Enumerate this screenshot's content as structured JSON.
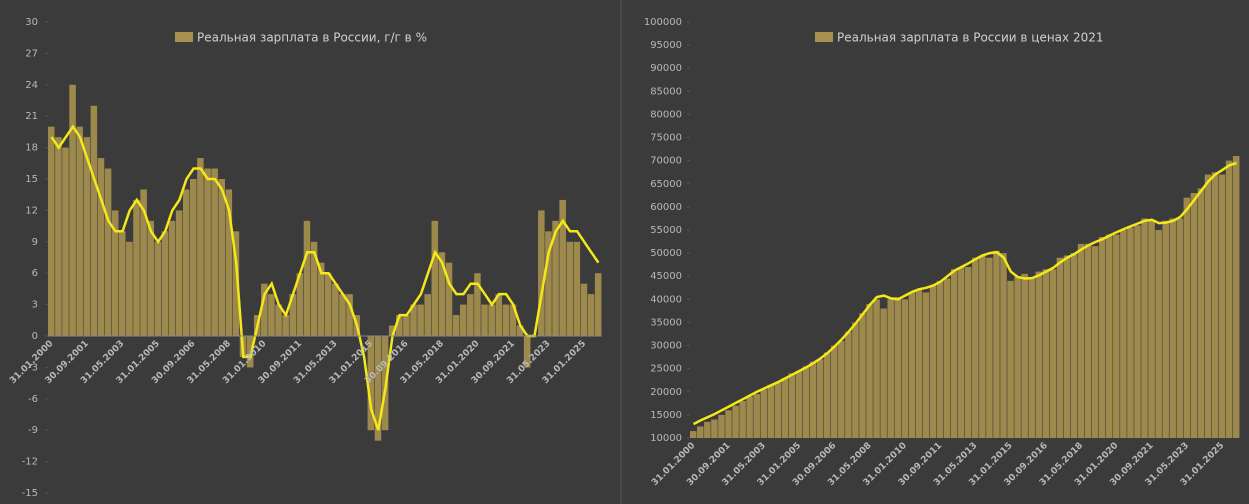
{
  "chart_data": [
    {
      "type": "bar",
      "title": null,
      "categories": [
        "31.01.2000",
        null,
        null,
        null,
        null,
        "30.09.2001",
        null,
        null,
        null,
        null,
        "31.05.2003",
        null,
        null,
        null,
        null,
        "31.01.2005",
        null,
        null,
        null,
        null,
        "30.09.2006",
        null,
        null,
        null,
        null,
        "31.05.2008",
        null,
        null,
        null,
        null,
        "31.01.2010",
        null,
        null,
        null,
        null,
        "30.09.2011",
        null,
        null,
        null,
        null,
        "31.05.2013",
        null,
        null,
        null,
        null,
        "31.01.2015",
        null,
        null,
        null,
        null,
        "30.09.2016",
        null,
        null,
        null,
        null,
        "31.05.2018",
        null,
        null,
        null,
        null,
        "31.01.2020",
        null,
        null,
        null,
        null,
        "30.09.2021",
        null,
        null,
        null,
        null,
        "31.05.2023",
        null,
        null,
        null,
        null,
        "31.01.2025",
        null,
        null
      ],
      "series": [
        {
          "name": "Реальная зарплата в России, г/г в %",
          "type": "bar",
          "color": "#a8924f",
          "values": [
            20,
            19,
            18,
            24,
            20,
            19,
            22,
            17,
            16,
            12,
            10,
            9,
            13,
            14,
            11,
            9,
            10,
            11,
            12,
            14,
            15,
            17,
            16,
            16,
            15,
            14,
            10,
            -2,
            -3,
            2,
            5,
            4,
            3,
            2,
            4,
            6,
            11,
            9,
            7,
            6,
            5,
            4,
            4,
            2,
            0,
            -9,
            -10,
            -9,
            1,
            2,
            2,
            3,
            3,
            4,
            11,
            8,
            7,
            2,
            3,
            4,
            6,
            3,
            3,
            4,
            3,
            3,
            1,
            -3,
            0,
            12,
            10,
            11,
            13,
            9,
            9,
            5,
            4,
            6
          ]
        },
        {
          "type": "line",
          "color": "#f4e81a",
          "values": [
            19,
            18,
            19,
            20,
            19,
            17,
            15,
            13,
            11,
            10,
            10,
            12,
            13,
            12,
            10,
            9,
            10,
            12,
            13,
            15,
            16,
            16,
            15,
            15,
            14,
            12,
            7,
            -2,
            -2,
            1,
            4,
            5,
            3,
            2,
            4,
            6,
            8,
            8,
            6,
            6,
            5,
            4,
            3,
            1,
            -2,
            -7,
            -9,
            -5,
            0,
            2,
            2,
            3,
            4,
            6,
            8,
            7,
            5,
            4,
            4,
            5,
            5,
            4,
            3,
            4,
            4,
            3,
            1,
            0,
            0,
            4,
            8,
            10,
            11,
            10,
            10,
            9,
            8,
            7
          ]
        }
      ],
      "ylim": [
        -15,
        30
      ],
      "yticks": [
        -15,
        -12,
        -9,
        -6,
        -3,
        0,
        3,
        6,
        9,
        12,
        15,
        18,
        21,
        24,
        27,
        30
      ]
    },
    {
      "type": "bar",
      "title": null,
      "categories": [
        "31.01.2000",
        null,
        null,
        null,
        null,
        "30.09.2001",
        null,
        null,
        null,
        null,
        "31.05.2003",
        null,
        null,
        null,
        null,
        "31.01.2005",
        null,
        null,
        null,
        null,
        "30.09.2006",
        null,
        null,
        null,
        null,
        "31.05.2008",
        null,
        null,
        null,
        null,
        "31.01.2010",
        null,
        null,
        null,
        null,
        "30.09.2011",
        null,
        null,
        null,
        null,
        "31.05.2013",
        null,
        null,
        null,
        null,
        "31.01.2015",
        null,
        null,
        null,
        null,
        "30.09.2016",
        null,
        null,
        null,
        null,
        "31.05.2018",
        null,
        null,
        null,
        null,
        "31.01.2020",
        null,
        null,
        null,
        null,
        "30.09.2021",
        null,
        null,
        null,
        null,
        "31.05.2023",
        null,
        null,
        null,
        null,
        "31.01.2025",
        null,
        null
      ],
      "series": [
        {
          "name": "Реальная зарплата в России в ценах 2021",
          "type": "bar",
          "color": "#a8924f",
          "values": [
            11500,
            12500,
            13500,
            14000,
            15000,
            16000,
            17000,
            18000,
            19000,
            19500,
            20500,
            21500,
            22000,
            23000,
            24000,
            24500,
            25500,
            26500,
            27000,
            28500,
            30000,
            31000,
            33000,
            35000,
            37000,
            39000,
            40000,
            38000,
            40000,
            40500,
            40000,
            41500,
            42000,
            41500,
            43000,
            44000,
            44500,
            46500,
            47000,
            47000,
            49000,
            49500,
            49000,
            50500,
            50000,
            44000,
            45000,
            45500,
            44500,
            46000,
            46500,
            46500,
            49000,
            49500,
            50000,
            52000,
            52000,
            51500,
            53500,
            54000,
            54000,
            55000,
            55500,
            56000,
            57500,
            57000,
            55000,
            57000,
            57500,
            57500,
            62000,
            63000,
            64000,
            67000,
            67500,
            67000,
            70000,
            71000
          ]
        },
        {
          "type": "line",
          "color": "#f4e81a",
          "values": [
            13000,
            13800,
            14500,
            15200,
            16000,
            16800,
            17600,
            18400,
            19200,
            20000,
            20700,
            21400,
            22100,
            22900,
            23700,
            24500,
            25300,
            26200,
            27200,
            28400,
            29800,
            31300,
            33000,
            34800,
            36800,
            38800,
            40500,
            40800,
            40200,
            40000,
            40800,
            41600,
            42200,
            42500,
            43000,
            43800,
            45000,
            46200,
            47000,
            47800,
            48700,
            49500,
            50000,
            50200,
            49000,
            46000,
            44800,
            44500,
            44600,
            45200,
            46000,
            46800,
            48000,
            49000,
            49800,
            50800,
            51700,
            52400,
            53000,
            53800,
            54500,
            55200,
            55800,
            56400,
            57000,
            57200,
            56500,
            56600,
            57000,
            57800,
            59500,
            61500,
            63500,
            65500,
            67000,
            68000,
            69000,
            69500
          ]
        }
      ],
      "ylim": [
        10000,
        100000
      ],
      "yticks": [
        10000,
        15000,
        20000,
        25000,
        30000,
        35000,
        40000,
        45000,
        50000,
        55000,
        60000,
        65000,
        70000,
        75000,
        80000,
        85000,
        90000,
        95000,
        100000
      ]
    }
  ]
}
